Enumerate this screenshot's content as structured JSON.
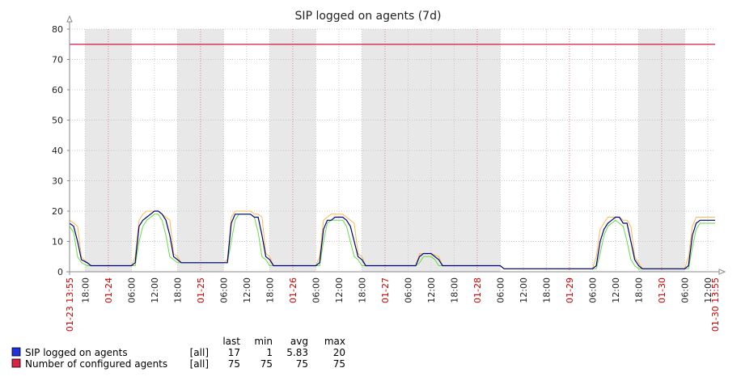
{
  "chart_data": {
    "type": "line",
    "title": "SIP logged on agents (7d)",
    "ylim": [
      0,
      80
    ],
    "y_ticks": [
      0,
      10,
      20,
      30,
      40,
      50,
      60,
      70,
      80
    ],
    "x_range": [
      "01-23 13:55",
      "01-30 13:55"
    ],
    "x_edge_labels": [
      "01-23 13:55",
      "01-30 13:55"
    ],
    "x_day_labels": [
      "01-24",
      "01-25",
      "01-26",
      "01-27",
      "01-28",
      "01-29",
      "01-30"
    ],
    "x_hour_labels": [
      "18:00",
      "06:00",
      "12:00"
    ],
    "grid": true,
    "shaded_periods": [
      [
        "01-23 18:00",
        "01-24 06:00"
      ],
      [
        "01-24 18:00",
        "01-25 06:00"
      ],
      [
        "01-25 18:00",
        "01-26 06:00"
      ],
      [
        "01-26 18:00",
        "01-28 06:00"
      ],
      [
        "01-29 18:00",
        "01-30 06:00"
      ]
    ],
    "series": [
      {
        "name": "SIP logged on agents",
        "color": "#00007f",
        "points": [
          [
            "01-23 13:55",
            16
          ],
          [
            "01-23 15:00",
            15
          ],
          [
            "01-23 16:00",
            10
          ],
          [
            "01-23 17:00",
            4
          ],
          [
            "01-23 18:30",
            3
          ],
          [
            "01-23 19:30",
            2
          ],
          [
            "01-24 06:00",
            2
          ],
          [
            "01-24 07:00",
            3
          ],
          [
            "01-24 08:00",
            15
          ],
          [
            "01-24 09:00",
            17
          ],
          [
            "01-24 10:00",
            18
          ],
          [
            "01-24 11:00",
            19
          ],
          [
            "01-24 12:00",
            20
          ],
          [
            "01-24 13:00",
            20
          ],
          [
            "01-24 14:00",
            19
          ],
          [
            "01-24 15:00",
            17
          ],
          [
            "01-24 16:00",
            12
          ],
          [
            "01-24 17:00",
            5
          ],
          [
            "01-24 18:00",
            4
          ],
          [
            "01-24 19:00",
            3
          ],
          [
            "01-25 06:00",
            3
          ],
          [
            "01-25 07:00",
            3
          ],
          [
            "01-25 08:00",
            16
          ],
          [
            "01-25 09:00",
            19
          ],
          [
            "01-25 13:00",
            19
          ],
          [
            "01-25 14:00",
            18
          ],
          [
            "01-25 15:00",
            18
          ],
          [
            "01-25 16:00",
            12
          ],
          [
            "01-25 17:00",
            5
          ],
          [
            "01-25 18:00",
            4
          ],
          [
            "01-25 19:00",
            2
          ],
          [
            "01-26 06:00",
            2
          ],
          [
            "01-26 07:00",
            3
          ],
          [
            "01-26 08:00",
            14
          ],
          [
            "01-26 09:00",
            17
          ],
          [
            "01-26 10:00",
            17
          ],
          [
            "01-26 11:00",
            18
          ],
          [
            "01-26 13:00",
            18
          ],
          [
            "01-26 14:00",
            17
          ],
          [
            "01-26 15:00",
            15
          ],
          [
            "01-26 16:00",
            10
          ],
          [
            "01-26 17:00",
            5
          ],
          [
            "01-26 18:00",
            4
          ],
          [
            "01-26 19:00",
            2
          ],
          [
            "01-27 08:00",
            2
          ],
          [
            "01-27 09:00",
            5
          ],
          [
            "01-27 10:00",
            6
          ],
          [
            "01-27 12:00",
            6
          ],
          [
            "01-27 13:00",
            5
          ],
          [
            "01-27 14:00",
            4
          ],
          [
            "01-27 15:00",
            2
          ],
          [
            "01-28 06:00",
            2
          ],
          [
            "01-28 07:00",
            1
          ],
          [
            "01-29 06:00",
            1
          ],
          [
            "01-29 07:00",
            2
          ],
          [
            "01-29 08:00",
            10
          ],
          [
            "01-29 09:00",
            14
          ],
          [
            "01-29 10:00",
            16
          ],
          [
            "01-29 11:00",
            17
          ],
          [
            "01-29 12:00",
            18
          ],
          [
            "01-29 13:00",
            18
          ],
          [
            "01-29 14:00",
            16
          ],
          [
            "01-29 15:00",
            16
          ],
          [
            "01-29 16:00",
            10
          ],
          [
            "01-29 17:00",
            4
          ],
          [
            "01-29 18:00",
            2
          ],
          [
            "01-29 19:00",
            1
          ],
          [
            "01-30 06:00",
            1
          ],
          [
            "01-30 07:00",
            2
          ],
          [
            "01-30 08:00",
            12
          ],
          [
            "01-30 09:00",
            16
          ],
          [
            "01-30 10:00",
            17
          ],
          [
            "01-30 13:55",
            17
          ]
        ]
      },
      {
        "name": "Number of configured agents",
        "color": "#cc0033",
        "points": [
          [
            "01-23 13:55",
            75
          ],
          [
            "01-30 13:55",
            75
          ]
        ]
      }
    ],
    "minmax_band": {
      "max_color": "#ffb84d",
      "min_color": "#66dd44",
      "max_points": [
        [
          "01-23 13:55",
          17
        ],
        [
          "01-23 15:00",
          16
        ],
        [
          "01-23 16:00",
          15
        ],
        [
          "01-23 17:00",
          5
        ],
        [
          "01-23 18:30",
          3
        ],
        [
          "01-23 19:30",
          2
        ],
        [
          "01-24 06:00",
          2
        ],
        [
          "01-24 07:00",
          5
        ],
        [
          "01-24 08:00",
          17
        ],
        [
          "01-24 09:00",
          19
        ],
        [
          "01-24 10:00",
          20
        ],
        [
          "01-24 13:00",
          20
        ],
        [
          "01-24 14:00",
          19
        ],
        [
          "01-24 15:00",
          18
        ],
        [
          "01-24 16:00",
          17
        ],
        [
          "01-24 17:00",
          6
        ],
        [
          "01-24 18:00",
          5
        ],
        [
          "01-24 19:00",
          3
        ],
        [
          "01-25 06:00",
          3
        ],
        [
          "01-25 07:00",
          4
        ],
        [
          "01-25 08:00",
          18
        ],
        [
          "01-25 09:00",
          20
        ],
        [
          "01-25 13:00",
          20
        ],
        [
          "01-25 14:00",
          19
        ],
        [
          "01-25 15:00",
          19
        ],
        [
          "01-25 16:00",
          18
        ],
        [
          "01-25 17:00",
          6
        ],
        [
          "01-25 18:00",
          5
        ],
        [
          "01-25 19:00",
          2
        ],
        [
          "01-26 06:00",
          2
        ],
        [
          "01-26 07:00",
          5
        ],
        [
          "01-26 08:00",
          17
        ],
        [
          "01-26 09:00",
          18
        ],
        [
          "01-26 10:00",
          19
        ],
        [
          "01-26 13:00",
          19
        ],
        [
          "01-26 14:00",
          18
        ],
        [
          "01-26 15:00",
          17
        ],
        [
          "01-26 16:00",
          16
        ],
        [
          "01-26 17:00",
          6
        ],
        [
          "01-26 18:00",
          5
        ],
        [
          "01-26 19:00",
          2
        ],
        [
          "01-27 08:00",
          2
        ],
        [
          "01-27 09:00",
          6
        ],
        [
          "01-27 12:00",
          6
        ],
        [
          "01-27 14:00",
          5
        ],
        [
          "01-27 15:00",
          2
        ],
        [
          "01-28 06:00",
          2
        ],
        [
          "01-28 07:00",
          1
        ],
        [
          "01-29 06:00",
          1
        ],
        [
          "01-29 07:00",
          5
        ],
        [
          "01-29 08:00",
          14
        ],
        [
          "01-29 09:00",
          16
        ],
        [
          "01-29 10:00",
          18
        ],
        [
          "01-29 13:00",
          18
        ],
        [
          "01-29 14:00",
          17
        ],
        [
          "01-29 15:00",
          17
        ],
        [
          "01-29 16:00",
          15
        ],
        [
          "01-29 17:00",
          5
        ],
        [
          "01-29 18:00",
          3
        ],
        [
          "01-29 19:00",
          1
        ],
        [
          "01-30 06:00",
          1
        ],
        [
          "01-30 07:00",
          5
        ],
        [
          "01-30 08:00",
          15
        ],
        [
          "01-30 09:00",
          18
        ],
        [
          "01-30 13:55",
          18
        ]
      ],
      "min_points": [
        [
          "01-23 13:55",
          15
        ],
        [
          "01-23 15:00",
          13
        ],
        [
          "01-23 16:00",
          5
        ],
        [
          "01-23 17:00",
          3
        ],
        [
          "01-23 18:30",
          2
        ],
        [
          "01-24 06:00",
          2
        ],
        [
          "01-24 07:00",
          2
        ],
        [
          "01-24 08:00",
          10
        ],
        [
          "01-24 09:00",
          15
        ],
        [
          "01-24 10:00",
          17
        ],
        [
          "01-24 11:00",
          18
        ],
        [
          "01-24 12:00",
          19
        ],
        [
          "01-24 13:00",
          19
        ],
        [
          "01-24 14:00",
          17
        ],
        [
          "01-24 15:00",
          12
        ],
        [
          "01-24 16:00",
          5
        ],
        [
          "01-24 17:00",
          4
        ],
        [
          "01-24 18:00",
          3
        ],
        [
          "01-25 06:00",
          3
        ],
        [
          "01-25 07:00",
          3
        ],
        [
          "01-25 08:00",
          10
        ],
        [
          "01-25 09:00",
          17
        ],
        [
          "01-25 10:00",
          19
        ],
        [
          "01-25 13:00",
          19
        ],
        [
          "01-25 14:00",
          18
        ],
        [
          "01-25 15:00",
          13
        ],
        [
          "01-25 16:00",
          5
        ],
        [
          "01-25 17:00",
          4
        ],
        [
          "01-25 18:00",
          2
        ],
        [
          "01-26 06:00",
          2
        ],
        [
          "01-26 07:00",
          2
        ],
        [
          "01-26 08:00",
          10
        ],
        [
          "01-26 09:00",
          16
        ],
        [
          "01-26 10:00",
          17
        ],
        [
          "01-26 13:00",
          17
        ],
        [
          "01-26 14:00",
          15
        ],
        [
          "01-26 15:00",
          10
        ],
        [
          "01-26 16:00",
          5
        ],
        [
          "01-26 17:00",
          4
        ],
        [
          "01-26 18:00",
          2
        ],
        [
          "01-27 08:00",
          2
        ],
        [
          "01-27 09:00",
          3
        ],
        [
          "01-27 10:00",
          5
        ],
        [
          "01-27 12:00",
          5
        ],
        [
          "01-27 13:00",
          4
        ],
        [
          "01-27 14:00",
          2
        ],
        [
          "01-28 06:00",
          2
        ],
        [
          "01-28 07:00",
          1
        ],
        [
          "01-29 06:00",
          1
        ],
        [
          "01-29 07:00",
          1
        ],
        [
          "01-29 08:00",
          6
        ],
        [
          "01-29 09:00",
          12
        ],
        [
          "01-29 10:00",
          15
        ],
        [
          "01-29 11:00",
          16
        ],
        [
          "01-29 12:00",
          17
        ],
        [
          "01-29 13:00",
          16
        ],
        [
          "01-29 14:00",
          15
        ],
        [
          "01-29 15:00",
          10
        ],
        [
          "01-29 16:00",
          4
        ],
        [
          "01-29 17:00",
          2
        ],
        [
          "01-29 18:00",
          1
        ],
        [
          "01-30 06:00",
          1
        ],
        [
          "01-30 07:00",
          1
        ],
        [
          "01-30 08:00",
          8
        ],
        [
          "01-30 09:00",
          14
        ],
        [
          "01-30 10:00",
          16
        ],
        [
          "01-30 13:55",
          16
        ]
      ]
    }
  },
  "legend": {
    "headers": [
      "last",
      "min",
      "avg",
      "max"
    ],
    "rows": [
      {
        "name": "SIP logged on agents",
        "scope": "[all]",
        "last": "17",
        "min": "1",
        "avg": "5.83",
        "max": "20",
        "swatch": "#2233dd"
      },
      {
        "name": "Number of configured agents",
        "scope": "[all]",
        "last": "75",
        "min": "75",
        "avg": "75",
        "max": "75",
        "swatch": "#dd2244"
      }
    ]
  }
}
